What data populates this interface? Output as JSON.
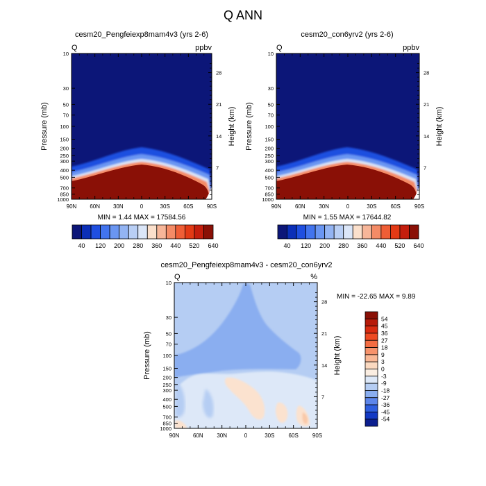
{
  "figure_title": "Q ANN",
  "chart_data": [
    {
      "type": "heatmap",
      "title": "cesm20_Pengfeiexp8mam4v3 (yrs 2-6)",
      "variable": "Q",
      "units": "ppbv",
      "ylabel": "Pressure (mb)",
      "ylabel_right": "Height (km)",
      "x_ticks": [
        "90N",
        "60N",
        "30N",
        "0",
        "30S",
        "60S",
        "90S"
      ],
      "y_ticks": [
        "10",
        "30",
        "50",
        "70",
        "100",
        "150",
        "200",
        "250",
        "300",
        "400",
        "500",
        "700",
        "850",
        "1000"
      ],
      "y_ticks_right": [
        "28",
        "21",
        "14",
        "7"
      ],
      "ylim": [
        1000,
        10
      ],
      "stats": "MIN =   1.44  MAX = 17584.56",
      "colorbar": {
        "orientation": "horizontal",
        "levels": [
          "40",
          "120",
          "200",
          "280",
          "360",
          "440",
          "520",
          "640"
        ],
        "colors": [
          "#0c1678",
          "#0b2fb8",
          "#1f4fe0",
          "#4274ee",
          "#6a96f2",
          "#93b4f3",
          "#b9cff5",
          "#dbe6f8",
          "#fbe0cc",
          "#f7b699",
          "#f48b66",
          "#ef5e36",
          "#e33a15",
          "#c41e0d",
          "#8a1006"
        ]
      }
    },
    {
      "type": "heatmap",
      "title": "cesm20_con6yrv2 (yrs 2-6)",
      "variable": "Q",
      "units": "ppbv",
      "ylabel": "Pressure (mb)",
      "ylabel_right": "Height (km)",
      "x_ticks": [
        "90N",
        "60N",
        "30N",
        "0",
        "30S",
        "60S",
        "90S"
      ],
      "y_ticks": [
        "10",
        "30",
        "50",
        "70",
        "100",
        "150",
        "200",
        "250",
        "300",
        "400",
        "500",
        "700",
        "850",
        "1000"
      ],
      "y_ticks_right": [
        "28",
        "21",
        "14",
        "7"
      ],
      "ylim": [
        1000,
        10
      ],
      "stats": "MIN =   1.55  MAX = 17644.82",
      "colorbar": {
        "orientation": "horizontal",
        "levels": [
          "40",
          "120",
          "200",
          "280",
          "360",
          "440",
          "520",
          "640"
        ],
        "colors": [
          "#0c1678",
          "#0b2fb8",
          "#1f4fe0",
          "#4274ee",
          "#6a96f2",
          "#93b4f3",
          "#b9cff5",
          "#dbe6f8",
          "#fbe0cc",
          "#f7b699",
          "#f48b66",
          "#ef5e36",
          "#e33a15",
          "#c41e0d",
          "#8a1006"
        ]
      }
    },
    {
      "type": "heatmap",
      "title": "cesm20_Pengfeiexp8mam4v3 - cesm20_con6yrv2",
      "variable": "Q",
      "units": "%",
      "ylabel": "Pressure (mb)",
      "ylabel_right": "Height (km)",
      "x_ticks": [
        "90N",
        "60N",
        "30N",
        "0",
        "30S",
        "60S",
        "90S"
      ],
      "y_ticks": [
        "10",
        "30",
        "50",
        "70",
        "100",
        "150",
        "200",
        "250",
        "300",
        "400",
        "500",
        "700",
        "850",
        "1000"
      ],
      "y_ticks_right": [
        "28",
        "21",
        "14",
        "7"
      ],
      "ylim": [
        1000,
        10
      ],
      "stats": "MIN = -22.65  MAX =   9.89",
      "colorbar": {
        "orientation": "vertical",
        "levels": [
          "54",
          "45",
          "36",
          "27",
          "18",
          "9",
          "3",
          "0",
          "-3",
          "-9",
          "-18",
          "-27",
          "-36",
          "-45",
          "-54"
        ],
        "colors": [
          "#8a1006",
          "#b71a09",
          "#d92b10",
          "#ee4a22",
          "#f46d43",
          "#f7936c",
          "#f9b896",
          "#fbd9c0",
          "#fbeee2",
          "#dde8f8",
          "#b5cdf3",
          "#8aaef0",
          "#5d86ea",
          "#2f5fdf",
          "#1339c4",
          "#0c1f8f"
        ]
      }
    }
  ]
}
